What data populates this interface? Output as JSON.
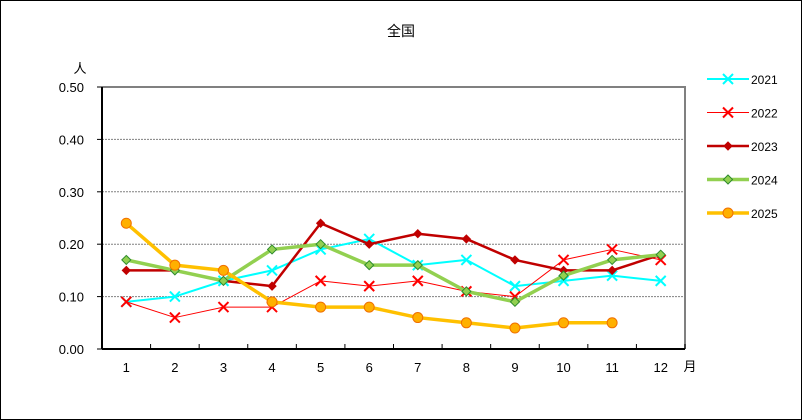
{
  "chart_data": {
    "type": "line",
    "title": "全国",
    "xlabel": "月",
    "ylabel": "人",
    "categories": [
      "1",
      "2",
      "3",
      "4",
      "5",
      "6",
      "7",
      "8",
      "9",
      "10",
      "11",
      "12"
    ],
    "ylim": [
      0,
      0.5
    ],
    "yticks": [
      "0.00",
      "0.10",
      "0.20",
      "0.30",
      "0.40",
      "0.50"
    ],
    "grid": true,
    "legend_position": "right",
    "series": [
      {
        "name": "2021",
        "color": "#00FFFF",
        "marker": "x",
        "width": 2,
        "values": [
          0.09,
          0.1,
          0.13,
          0.15,
          0.19,
          0.21,
          0.16,
          0.17,
          0.12,
          0.13,
          0.14,
          0.13
        ]
      },
      {
        "name": "2022",
        "color": "#FF0000",
        "marker": "x",
        "width": 1,
        "values": [
          0.09,
          0.06,
          0.08,
          0.08,
          0.13,
          0.12,
          0.13,
          0.11,
          0.1,
          0.17,
          0.19,
          0.17
        ]
      },
      {
        "name": "2023",
        "color": "#C00000",
        "marker": "diamond",
        "width": 2.5,
        "values": [
          0.15,
          0.15,
          0.13,
          0.12,
          0.24,
          0.2,
          0.22,
          0.21,
          0.17,
          0.15,
          0.15,
          0.18
        ]
      },
      {
        "name": "2024",
        "color": "#92D050",
        "marker": "diamond-green",
        "width": 3.5,
        "values": [
          0.17,
          0.15,
          0.13,
          0.19,
          0.2,
          0.16,
          0.16,
          0.11,
          0.09,
          0.14,
          0.17,
          0.18
        ]
      },
      {
        "name": "2025",
        "color": "#FFC000",
        "marker": "circle",
        "width": 3.5,
        "values": [
          0.24,
          0.16,
          0.15,
          0.09,
          0.08,
          0.08,
          0.06,
          0.05,
          0.04,
          0.05,
          0.05,
          null
        ]
      }
    ]
  }
}
